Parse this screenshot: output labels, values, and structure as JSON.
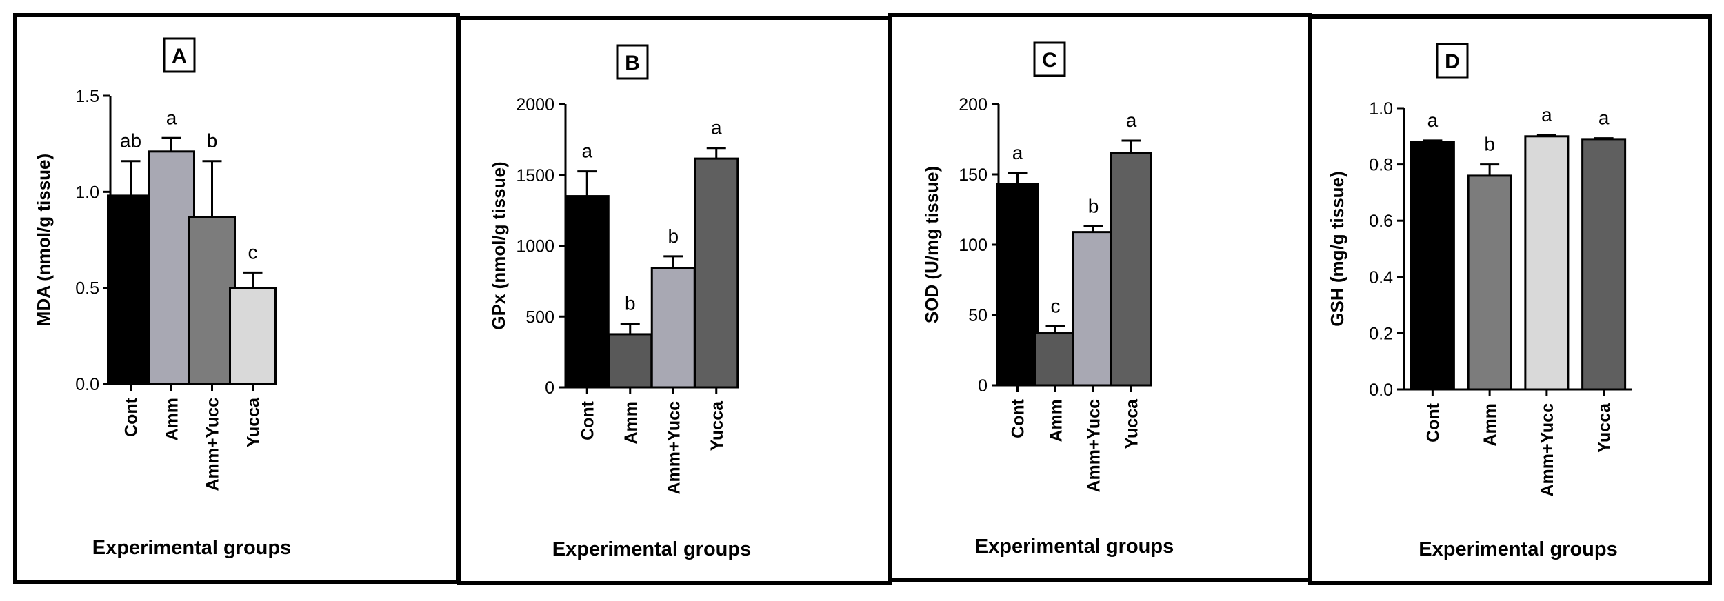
{
  "chart_data": [
    {
      "panel": "A",
      "type": "bar",
      "categories": [
        "Cont",
        "Amm",
        "Amm+Yucc",
        "Yucca"
      ],
      "values": [
        0.98,
        1.21,
        0.87,
        0.5
      ],
      "errors": [
        0.18,
        0.07,
        0.29,
        0.08
      ],
      "significance": [
        "ab",
        "a",
        "b",
        "c"
      ],
      "bar_colors": [
        "#000000",
        "#a8a8b3",
        "#7c7c7c",
        "#d9d9d9"
      ],
      "ylabel": "MDA  (nmol/g tissue)",
      "xlabel": "Experimental groups",
      "ylim": [
        0,
        1.5
      ],
      "yticks": [
        0.0,
        0.5,
        1.0,
        1.5
      ],
      "ytick_labels": [
        "0.0",
        "0.5",
        "1.0",
        "1.5"
      ]
    },
    {
      "panel": "B",
      "type": "bar",
      "categories": [
        "Cont",
        "Amm",
        "Amm+Yucc",
        "Yucca"
      ],
      "values": [
        1350,
        375,
        840,
        1615
      ],
      "errors": [
        175,
        75,
        85,
        75
      ],
      "significance": [
        "a",
        "b",
        "b",
        "a"
      ],
      "bar_colors": [
        "#000000",
        "#595959",
        "#a8a8b3",
        "#5f5f5f"
      ],
      "ylabel": "GPx (nmol/g tissue)",
      "xlabel": "Experimental groups",
      "ylim": [
        0,
        2000
      ],
      "yticks": [
        0,
        500,
        1000,
        1500,
        2000
      ],
      "ytick_labels": [
        "0",
        "500",
        "1000",
        "1500",
        "2000"
      ]
    },
    {
      "panel": "C",
      "type": "bar",
      "categories": [
        "Cont",
        "Amm",
        "Amm+Yucc",
        "Yucca"
      ],
      "values": [
        143,
        37,
        109,
        165
      ],
      "errors": [
        8,
        5,
        4,
        9
      ],
      "significance": [
        "a",
        "c",
        "b",
        "a"
      ],
      "bar_colors": [
        "#000000",
        "#595959",
        "#a8a8b3",
        "#5f5f5f"
      ],
      "ylabel": "SOD  (U/mg tissue)",
      "xlabel": "Experimental groups",
      "ylim": [
        0,
        200
      ],
      "yticks": [
        0,
        50,
        100,
        150,
        200
      ],
      "ytick_labels": [
        "0",
        "50",
        "100",
        "150",
        "200"
      ]
    },
    {
      "panel": "D",
      "type": "bar",
      "categories": [
        "Cont",
        "Amm",
        "Amm+Yucc",
        "Yucca"
      ],
      "values": [
        0.88,
        0.76,
        0.9,
        0.89
      ],
      "errors": [
        0.005,
        0.04,
        0.005,
        0.003
      ],
      "significance": [
        "a",
        "b",
        "a",
        "a"
      ],
      "bar_colors": [
        "#000000",
        "#7c7c7c",
        "#d9d9d9",
        "#5f5f5f"
      ],
      "ylabel": "GSH (mg/g tissue)",
      "xlabel": "Experimental groups",
      "ylim": [
        0,
        1.0
      ],
      "yticks": [
        0.0,
        0.2,
        0.4,
        0.6,
        0.8,
        1.0
      ],
      "ytick_labels": [
        "0.0",
        "0.2",
        "0.4",
        "0.6",
        "0.8",
        "1.0"
      ]
    }
  ]
}
